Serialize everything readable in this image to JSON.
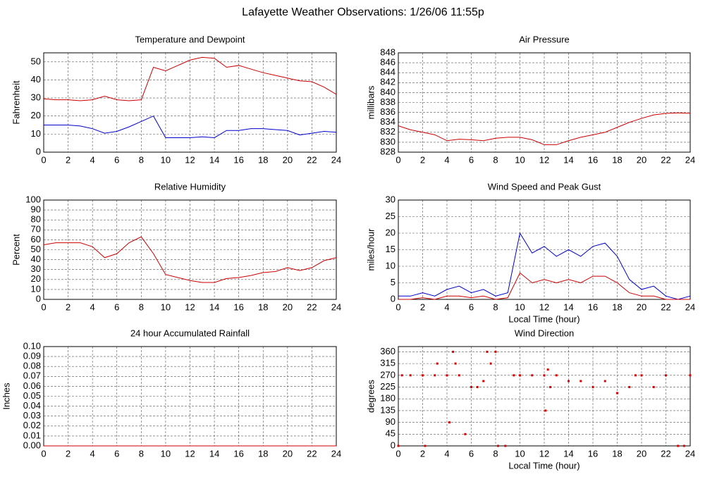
{
  "title": "Lafayette Weather Observations: 1/26/06 11:55p",
  "chart_data": [
    {
      "type": "line",
      "title": "Temperature and Dewpoint",
      "ylabel": "Fahrenheit",
      "x": [
        0,
        1,
        2,
        3,
        4,
        5,
        6,
        7,
        8,
        9,
        10,
        11,
        12,
        13,
        14,
        15,
        16,
        17,
        18,
        19,
        20,
        21,
        22,
        23,
        24
      ],
      "series": [
        {
          "color": "#cc0000",
          "values": [
            29.5,
            29,
            29,
            28.5,
            29,
            31,
            29,
            28.5,
            29,
            47,
            45,
            48,
            51,
            52.5,
            52,
            47,
            48,
            46,
            44,
            42.5,
            41,
            39.5,
            39,
            36,
            32
          ]
        },
        {
          "color": "#0000cc",
          "values": [
            15,
            15,
            15,
            14.5,
            13,
            10.5,
            11.5,
            14,
            17,
            20,
            8,
            8,
            8,
            8.5,
            8,
            12,
            12,
            13,
            13,
            12.5,
            12,
            9.5,
            10.5,
            11.5,
            11
          ]
        }
      ],
      "xlim": [
        0,
        24
      ],
      "xticks": [
        0,
        2,
        4,
        6,
        8,
        10,
        12,
        14,
        16,
        18,
        20,
        22,
        24
      ],
      "ylim": [
        0,
        55
      ],
      "yticks": [
        0,
        10,
        20,
        30,
        40,
        50
      ],
      "grid": true
    },
    {
      "type": "line",
      "title": "Air Pressure",
      "ylabel": "millibars",
      "x": [
        0,
        1,
        2,
        3,
        4,
        5,
        6,
        7,
        8,
        9,
        10,
        11,
        12,
        13,
        14,
        15,
        16,
        17,
        18,
        19,
        20,
        21,
        22,
        23,
        24
      ],
      "series": [
        {
          "color": "#cc0000",
          "values": [
            833.3,
            832.5,
            832,
            831.5,
            830.3,
            830.6,
            830.5,
            830.3,
            830.8,
            831,
            831,
            830.5,
            829.5,
            829.5,
            830.3,
            831,
            831.5,
            832,
            833,
            834,
            834.8,
            835.5,
            835.8,
            835.9,
            835.8
          ]
        }
      ],
      "xlim": [
        0,
        24
      ],
      "xticks": [
        0,
        2,
        4,
        6,
        8,
        10,
        12,
        14,
        16,
        18,
        20,
        22,
        24
      ],
      "ylim": [
        828,
        848
      ],
      "yticks": [
        828,
        830,
        832,
        834,
        836,
        838,
        840,
        842,
        844,
        846,
        848
      ],
      "grid": true
    },
    {
      "type": "line",
      "title": "Relative Humidity",
      "ylabel": "Percent",
      "x": [
        0,
        1,
        2,
        3,
        4,
        5,
        6,
        7,
        8,
        9,
        10,
        11,
        12,
        13,
        14,
        15,
        16,
        17,
        18,
        19,
        20,
        21,
        22,
        23,
        24
      ],
      "series": [
        {
          "color": "#cc0000",
          "values": [
            55,
            57,
            57,
            57,
            53,
            42,
            46,
            57,
            63,
            46,
            25,
            22,
            19,
            17,
            17,
            21,
            22,
            24,
            27,
            28,
            32,
            29,
            32,
            39,
            42
          ]
        }
      ],
      "xlim": [
        0,
        24
      ],
      "xticks": [
        0,
        2,
        4,
        6,
        8,
        10,
        12,
        14,
        16,
        18,
        20,
        22,
        24
      ],
      "ylim": [
        0,
        100
      ],
      "yticks": [
        0,
        10,
        20,
        30,
        40,
        50,
        60,
        70,
        80,
        90,
        100
      ],
      "grid": true
    },
    {
      "type": "line",
      "title": "Wind Speed and Peak Gust",
      "ylabel": "miles/hour",
      "xlabel": "Local Time (hour)",
      "x": [
        0,
        1,
        2,
        3,
        4,
        5,
        6,
        7,
        8,
        9,
        10,
        11,
        12,
        13,
        14,
        15,
        16,
        17,
        18,
        19,
        20,
        21,
        22,
        23,
        24
      ],
      "series": [
        {
          "color": "#0000cc",
          "values": [
            1,
            1,
            2,
            1,
            3,
            4,
            2,
            3,
            1,
            2,
            20,
            14,
            16,
            13,
            15,
            13,
            16,
            17,
            13,
            6,
            3,
            4,
            1,
            0,
            1
          ]
        },
        {
          "color": "#cc0000",
          "values": [
            0,
            0,
            0.5,
            0,
            1,
            1,
            0.5,
            1,
            0,
            0.5,
            8,
            5,
            6,
            5,
            6,
            5,
            7,
            7,
            5,
            2,
            1,
            1,
            0,
            0,
            0
          ]
        }
      ],
      "xlim": [
        0,
        24
      ],
      "xticks": [
        0,
        2,
        4,
        6,
        8,
        10,
        12,
        14,
        16,
        18,
        20,
        22,
        24
      ],
      "ylim": [
        0,
        30
      ],
      "yticks": [
        0,
        5,
        10,
        15,
        20,
        25,
        30
      ],
      "grid": true
    },
    {
      "type": "line",
      "title": "24 hour Accumulated Rainfall",
      "ylabel": "Inches",
      "x": [
        0,
        1,
        2,
        3,
        4,
        5,
        6,
        7,
        8,
        9,
        10,
        11,
        12,
        13,
        14,
        15,
        16,
        17,
        18,
        19,
        20,
        21,
        22,
        23,
        24
      ],
      "series": [
        {
          "color": "#cc0000",
          "values": [
            0,
            0,
            0,
            0,
            0,
            0,
            0,
            0,
            0,
            0,
            0,
            0,
            0,
            0,
            0,
            0,
            0,
            0,
            0,
            0,
            0,
            0,
            0,
            0,
            0
          ]
        }
      ],
      "xlim": [
        0,
        24
      ],
      "xticks": [
        0,
        2,
        4,
        6,
        8,
        10,
        12,
        14,
        16,
        18,
        20,
        22,
        24
      ],
      "ylim": [
        0,
        0.1
      ],
      "yticks": [
        {
          "value": 0,
          "label": "0.00"
        },
        0.01,
        0.02,
        0.03,
        0.04,
        0.05,
        0.06,
        0.07,
        0.08,
        0.09,
        {
          "value": 0.1,
          "label": "0.10"
        }
      ],
      "grid": true
    },
    {
      "type": "scatter",
      "title": "Wind Direction",
      "ylabel": "degrees",
      "xlabel": "Local Time (hour)",
      "x": [
        0,
        0.3,
        1,
        2,
        2.2,
        3,
        3.2,
        4,
        4.2,
        4.5,
        4.7,
        5,
        5.5,
        6,
        6.5,
        7,
        7.3,
        7.6,
        8,
        8.2,
        8.8,
        9.5,
        10,
        11,
        12,
        12.1,
        12.3,
        12.5,
        13,
        14,
        15,
        16,
        17,
        18,
        19,
        19.5,
        20,
        21,
        22,
        23,
        23.5,
        24
      ],
      "series": [
        {
          "color": "#dd0000",
          "values": [
            0,
            270,
            270,
            270,
            0,
            270,
            315,
            270,
            90,
            360,
            315,
            270,
            45,
            225,
            225,
            248,
            360,
            315,
            360,
            0,
            0,
            270,
            270,
            270,
            270,
            135,
            292,
            225,
            270,
            248,
            248,
            225,
            248,
            202,
            225,
            270,
            270,
            225,
            270,
            0,
            0,
            270
          ]
        }
      ],
      "xlim": [
        0,
        24
      ],
      "xticks": [
        0,
        2,
        4,
        6,
        8,
        10,
        12,
        14,
        16,
        18,
        20,
        22,
        24
      ],
      "ylim": [
        0,
        380
      ],
      "yticks": [
        0,
        45,
        90,
        135,
        180,
        225,
        270,
        315,
        360
      ],
      "grid": true
    }
  ]
}
